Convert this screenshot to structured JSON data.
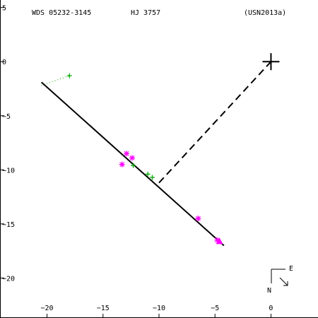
{
  "header": {
    "wds_id": "WDS 05232-3145",
    "discoverer": "HJ 3757",
    "reference": "(USN2013a)"
  },
  "compass": {
    "east": "E",
    "north": "N"
  },
  "chart_data": {
    "type": "scatter",
    "title": "",
    "xlabel": "",
    "ylabel": "",
    "xlim": [
      -24.2,
      4.2
    ],
    "ylim": [
      -23.7,
      5.7
    ],
    "x_ticks": [
      -20,
      -15,
      -10,
      -5,
      0
    ],
    "y_ticks": [
      5,
      0,
      -5,
      -10,
      -15,
      -20
    ],
    "x_tick_labels": [
      "−20",
      "−15",
      "−10",
      "−5",
      "0"
    ],
    "y_tick_labels": [
      "5",
      "0",
      "−5",
      "−10",
      "−15",
      "−20"
    ],
    "primary": {
      "x": 0,
      "y": 0,
      "color": "#000000"
    },
    "orbit_line": {
      "x": [
        -20.5,
        -4.2
      ],
      "y": [
        -1.9,
        -17.0
      ],
      "color": "#000000"
    },
    "projection_line": {
      "x": [
        -10.0,
        0
      ],
      "y": [
        -11.2,
        0
      ],
      "color": "#000000"
    },
    "first_obs_link": {
      "x": [
        -20.5,
        -18.0
      ],
      "y": [
        -2.2,
        -1.3
      ],
      "color": "#00aa00"
    },
    "series": [
      {
        "marker": "plus",
        "color": "#00aa00",
        "points": [
          [
            -18.0,
            -1.3
          ],
          [
            -12.3,
            -9.6
          ],
          [
            -11.0,
            -10.4
          ],
          [
            -10.6,
            -10.7
          ]
        ]
      },
      {
        "marker": "asterisk",
        "color": "#ff00ff",
        "points": [
          [
            -13.3,
            -9.5
          ],
          [
            -12.9,
            -8.5
          ],
          [
            -12.4,
            -8.9
          ],
          [
            -6.5,
            -14.5
          ],
          [
            -4.8,
            -16.5
          ]
        ]
      },
      {
        "marker": "triangle",
        "color": "#ff00ff",
        "points": [
          [
            -4.6,
            -16.6
          ]
        ]
      }
    ]
  }
}
